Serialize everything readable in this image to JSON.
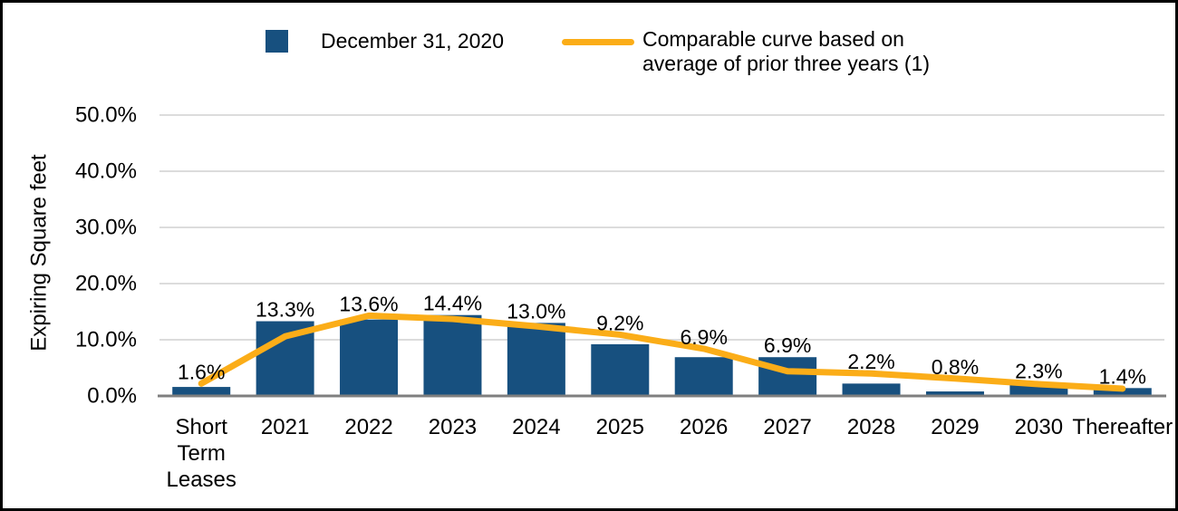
{
  "page": {
    "background_color": "#FFFFFF",
    "frame_border_color": "#000000"
  },
  "legend": {
    "series1_label": "December 31, 2020",
    "series2_label_line1": "Comparable curve based on",
    "series2_label_line2": "average of prior three years (1)"
  },
  "chart_data": {
    "type": "bar",
    "subtype": "combo-bar-line",
    "title": "",
    "xlabel": "",
    "ylabel": "Expiring Square feet",
    "ylim": [
      0,
      50
    ],
    "grid": "horizontal",
    "legend_position": "top",
    "y_ticks": [
      "0.0%",
      "10.0%",
      "20.0%",
      "30.0%",
      "40.0%",
      "50.0%"
    ],
    "categories": [
      "Short Term Leases",
      "2021",
      "2022",
      "2023",
      "2024",
      "2025",
      "2026",
      "2027",
      "2028",
      "2029",
      "2030",
      "Thereafter"
    ],
    "series": [
      {
        "name": "December 31, 2020",
        "render": "bar",
        "color": "#17507F",
        "values": [
          1.6,
          13.3,
          13.6,
          14.4,
          13.0,
          9.2,
          6.9,
          6.9,
          2.2,
          0.8,
          2.3,
          1.4
        ],
        "labels": [
          "1.6%",
          "13.3%",
          "13.6%",
          "14.4%",
          "13.0%",
          "9.2%",
          "6.9%",
          "6.9%",
          "2.2%",
          "0.8%",
          "2.3%",
          "1.4%"
        ]
      },
      {
        "name": "Comparable curve based on average of prior three years (1)",
        "render": "line",
        "color": "#FBAD18",
        "note": "curve is unlabeled; values estimated from pixel positions",
        "values": [
          2.2,
          10.6,
          14.3,
          13.7,
          12.4,
          10.9,
          8.4,
          4.4,
          4.0,
          3.1,
          2.1,
          1.3
        ]
      }
    ],
    "colors": {
      "grid_color": "#DCDCDC",
      "axis_color": "#7F7F7F",
      "text_color": "#000000"
    }
  }
}
